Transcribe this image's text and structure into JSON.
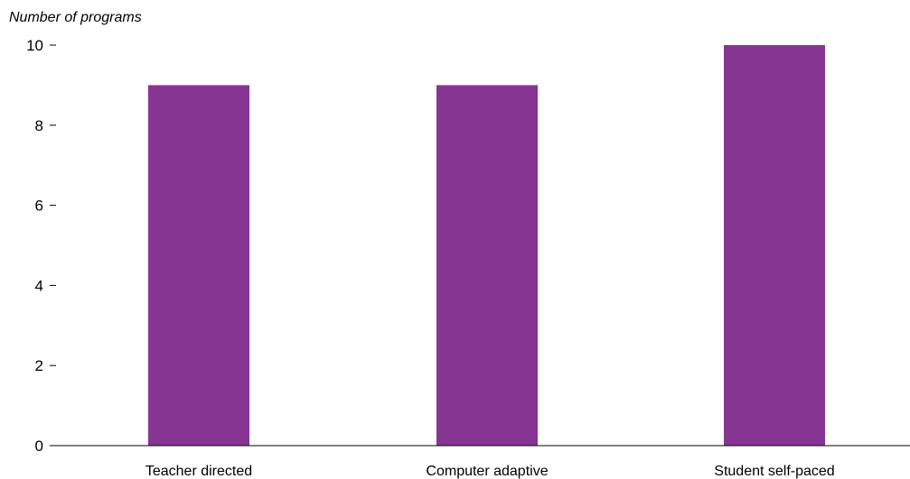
{
  "chart_data": {
    "type": "bar",
    "title": "",
    "xlabel": "",
    "ylabel": "Number of programs",
    "categories": [
      "Teacher directed",
      "Computer adaptive",
      "Student self-paced"
    ],
    "values": [
      9,
      9,
      10
    ],
    "ylim": [
      0,
      10
    ],
    "yticks": [
      0,
      2,
      4,
      6,
      8,
      10
    ],
    "grid": false,
    "bar_color": "#873592"
  }
}
